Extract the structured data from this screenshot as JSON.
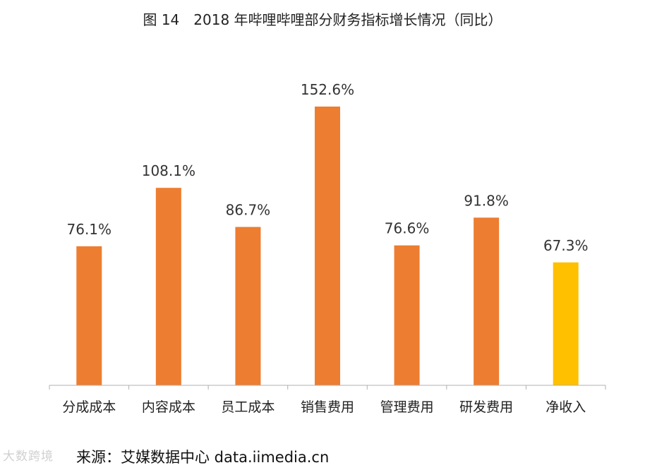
{
  "title": "图 14　2018 年哔哩哔哩部分财务指标增长情况（同比）",
  "source": "来源：艾媒数据中心 data.iimedia.cn",
  "watermark": "大数跨境",
  "colors": {
    "primary": "#ED7D31",
    "highlight": "#FFC000",
    "axis": "#b0b0b0",
    "text": "#333333"
  },
  "chart_data": {
    "type": "bar",
    "categories": [
      "分成成本",
      "内容成本",
      "员工成本",
      "销售费用",
      "管理费用",
      "研发费用",
      "净收入"
    ],
    "values": [
      76.1,
      108.1,
      86.7,
      152.6,
      76.6,
      91.8,
      67.3
    ],
    "labels": [
      "76.1%",
      "108.1%",
      "86.7%",
      "152.6%",
      "76.6%",
      "91.8%",
      "67.3%"
    ],
    "highlight_index": 6,
    "ylim": [
      0,
      180
    ],
    "grid": false,
    "yaxis_visible": false
  }
}
